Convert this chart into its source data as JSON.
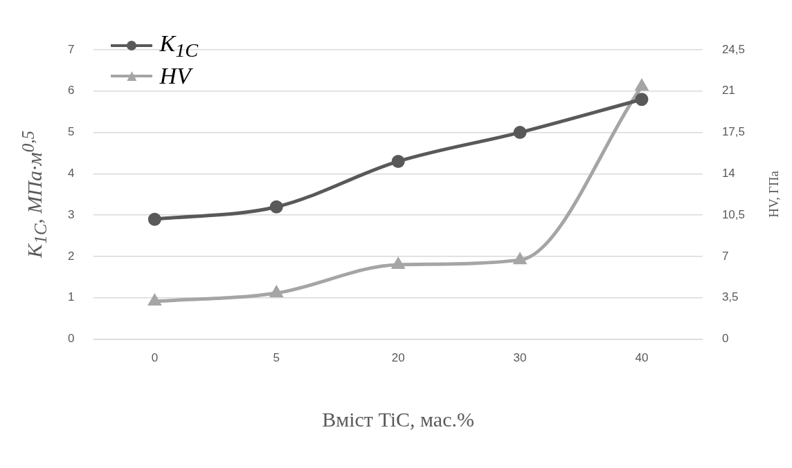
{
  "chart_data": {
    "type": "line",
    "xlabel": "Вміст TiC, мас.%",
    "ylabel": "K$_{1C}$, МПа·м$^{0,5}$",
    "y2label": "HV, ГПа",
    "categories": [
      "0",
      "5",
      "20",
      "30",
      "40"
    ],
    "series": [
      {
        "name": "K$_{1C}$",
        "color": "#595959",
        "marker": "circle",
        "values": [
          2.9,
          3.2,
          4.3,
          5.0,
          5.8
        ]
      },
      {
        "name": "HV",
        "color": "#a5a5a5",
        "marker": "triangle",
        "axis": "y2",
        "values": [
          3.2,
          3.9,
          6.3,
          6.7,
          21.4
        ]
      }
    ],
    "ylim": [
      0,
      7
    ],
    "yticks": [
      0,
      1,
      2,
      3,
      4,
      5,
      6,
      7
    ],
    "y2lim": [
      0,
      24.5
    ],
    "y2ticks": [
      0,
      {
        "value": 3.5,
        "label": "3,5"
      },
      7,
      {
        "value": 10.5,
        "label": "10,5"
      },
      14,
      {
        "value": 17.5,
        "label": "17,5"
      },
      21,
      {
        "value": 24.5,
        "label": "24,5"
      }
    ],
    "grid": "y",
    "legend": "top left"
  }
}
